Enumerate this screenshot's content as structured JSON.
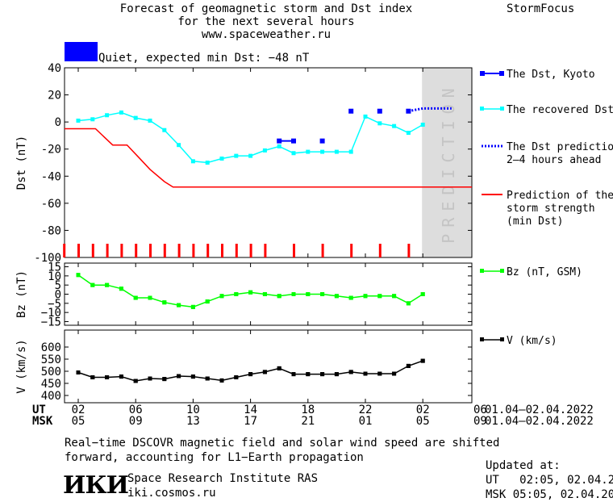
{
  "header": {
    "title_lines": [
      "Forecast of geomagnetic storm and Dst index",
      "for the next several hours",
      "www.spaceweather.ru"
    ],
    "brand": "StormFocus"
  },
  "status": {
    "text": "Quiet, expected min Dst: −48 nT",
    "color": "#0000ff"
  },
  "prediction_watermark": "PREDICTION",
  "chart_data": [
    {
      "type": "line",
      "ylabel": "Dst (nT)",
      "ylim": [
        -100,
        40
      ],
      "yticks": [
        40,
        20,
        0,
        -20,
        -40,
        -60,
        -80,
        -100
      ],
      "x_index_range": [
        0,
        28
      ],
      "prediction_start_index": 24,
      "series": [
        {
          "name": "The Dst, Kyoto",
          "color": "#0000ff",
          "style": "square",
          "points": [
            [
              14,
              -14
            ],
            [
              15,
              -14
            ],
            [
              17,
              -14
            ],
            [
              19,
              8
            ],
            [
              21,
              8
            ],
            [
              23,
              8
            ]
          ],
          "segments": [
            [
              0,
              1
            ]
          ]
        },
        {
          "name": "The recovered Dst",
          "color": "#00ffff",
          "style": "line-marker",
          "points": [
            [
              0,
              1
            ],
            [
              1,
              2
            ],
            [
              2,
              5
            ],
            [
              3,
              7
            ],
            [
              4,
              3
            ],
            [
              5,
              1
            ],
            [
              6,
              -6
            ],
            [
              7,
              -17
            ],
            [
              8,
              -29
            ],
            [
              9,
              -30
            ],
            [
              10,
              -27
            ],
            [
              11,
              -25
            ],
            [
              12,
              -25
            ],
            [
              13,
              -21
            ],
            [
              14,
              -18
            ],
            [
              15,
              -23
            ],
            [
              16,
              -22
            ],
            [
              17,
              -22
            ],
            [
              18,
              -22
            ],
            [
              19,
              -22
            ],
            [
              20,
              4
            ],
            [
              21,
              -1
            ],
            [
              22,
              -3
            ],
            [
              23,
              -8
            ],
            [
              24,
              -2
            ]
          ]
        },
        {
          "name": "The Dst prediction 2–4 hours ahead",
          "color": "#0000ff",
          "style": "dotted",
          "points": [
            [
              23,
              8
            ],
            [
              24,
              10
            ],
            [
              25,
              10
            ],
            [
              26,
              10
            ]
          ]
        },
        {
          "name": "Prediction of the storm strength (min Dst)",
          "color": "#ff0000",
          "style": "line",
          "points": [
            [
              -1,
              -5
            ],
            [
              1.2,
              -5
            ],
            [
              2.4,
              -17
            ],
            [
              3.4,
              -17
            ],
            [
              4.2,
              -26
            ],
            [
              5,
              -35
            ],
            [
              6,
              -44
            ],
            [
              6.6,
              -48
            ],
            [
              28,
              -48
            ]
          ]
        }
      ],
      "event_markers_index": [
        -1,
        0,
        1,
        2,
        3,
        4,
        5,
        6,
        7,
        8,
        9,
        10,
        11,
        12,
        13,
        15,
        17,
        19,
        21,
        23
      ],
      "legend_lines": [
        [
          "The Dst, Kyoto"
        ],
        [
          "The recovered Dst"
        ],
        [
          "The Dst prediction",
          "2–4 hours ahead"
        ],
        [
          "Prediction of the",
          "storm strength",
          "(min Dst)"
        ]
      ]
    },
    {
      "type": "line",
      "ylabel": "Bz (nT)",
      "yticks": [
        "15",
        "10",
        "5",
        "0",
        "−5",
        "−10",
        "−15"
      ],
      "ytick_values": [
        15,
        10,
        5,
        0,
        -5,
        -10,
        -15
      ],
      "ylim": [
        -17,
        17
      ],
      "series": [
        {
          "name": "Bz (nT, GSM)",
          "color": "#00ff00",
          "points": [
            [
              0,
              10.5
            ],
            [
              1,
              5
            ],
            [
              2,
              5
            ],
            [
              3,
              3
            ],
            [
              4,
              -2
            ],
            [
              5,
              -2
            ],
            [
              6,
              -4.5
            ],
            [
              7,
              -6
            ],
            [
              8,
              -7
            ],
            [
              9,
              -4
            ],
            [
              10,
              -1
            ],
            [
              11,
              0
            ],
            [
              12,
              1
            ],
            [
              13,
              0
            ],
            [
              14,
              -1
            ],
            [
              15,
              0
            ],
            [
              16,
              0
            ],
            [
              17,
              0
            ],
            [
              18,
              -1
            ],
            [
              19,
              -2
            ],
            [
              20,
              -1
            ],
            [
              21,
              -1
            ],
            [
              22,
              -1
            ],
            [
              23,
              -5
            ],
            [
              24,
              0
            ]
          ]
        }
      ],
      "legend_lines": [
        [
          "Bz (nT, GSM)"
        ]
      ]
    },
    {
      "type": "line",
      "ylabel": "V (km/s)",
      "yticks": [
        "600",
        "550",
        "500",
        "450",
        "400"
      ],
      "ytick_values": [
        600,
        550,
        500,
        450,
        400
      ],
      "ylim": [
        370,
        670
      ],
      "series": [
        {
          "name": "V (km/s)",
          "color": "#000000",
          "points": [
            [
              0,
              495
            ],
            [
              1,
              475
            ],
            [
              2,
              475
            ],
            [
              3,
              478
            ],
            [
              4,
              460
            ],
            [
              5,
              470
            ],
            [
              6,
              468
            ],
            [
              7,
              480
            ],
            [
              8,
              478
            ],
            [
              9,
              470
            ],
            [
              10,
              462
            ],
            [
              11,
              475
            ],
            [
              12,
              488
            ],
            [
              13,
              497
            ],
            [
              14,
              512
            ],
            [
              15,
              488
            ],
            [
              16,
              488
            ],
            [
              17,
              488
            ],
            [
              18,
              488
            ],
            [
              19,
              497
            ],
            [
              20,
              490
            ],
            [
              21,
              490
            ],
            [
              22,
              490
            ],
            [
              23,
              522
            ],
            [
              24,
              543
            ]
          ]
        }
      ],
      "legend_lines": [
        [
          "V (km/s)"
        ]
      ]
    }
  ],
  "time_axis": {
    "rows": [
      {
        "label": "UT",
        "ticks": [
          "02",
          "06",
          "10",
          "14",
          "18",
          "22",
          "02",
          "06"
        ],
        "range": "01.04–02.04.2022"
      },
      {
        "label": "MSK",
        "ticks": [
          "05",
          "09",
          "13",
          "17",
          "21",
          "01",
          "05",
          "09"
        ],
        "range": "01.04–02.04.2022"
      }
    ]
  },
  "footer": {
    "note_lines": [
      "Real−time DSCOVR magnetic field and solar wind speed are shifted",
      "forward, accounting for L1−Earth propagation"
    ],
    "logo_text": "ИКИ",
    "institute": "Space Research Institute RAS",
    "website": "iki.cosmos.ru",
    "updated_label": "Updated at:",
    "updated_ut": "UT   02:05, 02.04.2022",
    "updated_msk": "MSK 05:05, 02.04.2022"
  }
}
